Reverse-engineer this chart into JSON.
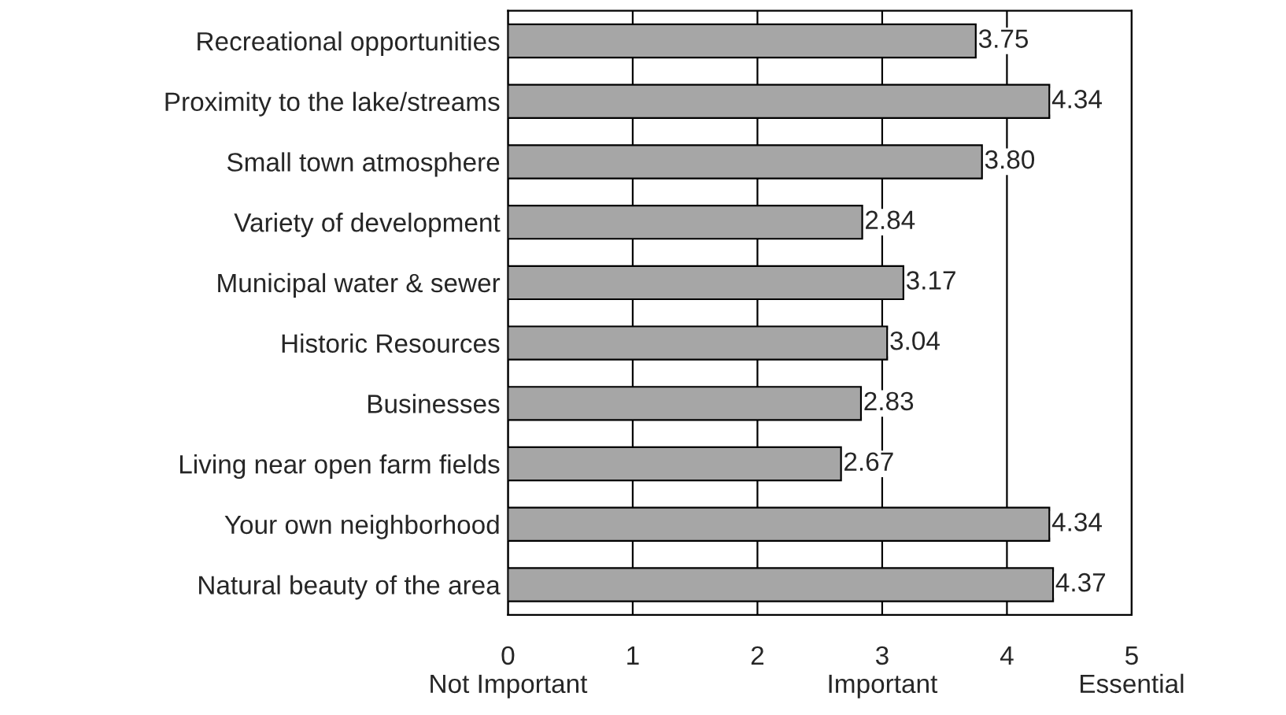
{
  "chart_data": {
    "type": "bar",
    "orientation": "horizontal",
    "categories": [
      "Recreational opportunities",
      "Proximity to the lake/streams",
      "Small town atmosphere",
      "Variety of development",
      "Municipal water & sewer",
      "Historic Resources",
      "Businesses",
      "Living near open farm fields",
      "Your own neighborhood",
      "Natural beauty of the area"
    ],
    "values": [
      3.75,
      4.34,
      3.8,
      2.84,
      3.17,
      3.04,
      2.83,
      2.67,
      4.34,
      4.37
    ],
    "value_labels": [
      "3.75",
      "4.34",
      "3.80",
      "2.84",
      "3.17",
      "3.04",
      "2.83",
      "2.67",
      "4.34",
      "4.37"
    ],
    "color": "#a6a6a6",
    "xlim": [
      0,
      5
    ],
    "xticks": [
      {
        "value": 0,
        "label": "0\nNot Important"
      },
      1,
      2,
      {
        "value": 3,
        "label": "3\nImportant"
      },
      4,
      {
        "value": 5,
        "label": "5\nEssential"
      }
    ],
    "grid": "x",
    "legend": false
  }
}
